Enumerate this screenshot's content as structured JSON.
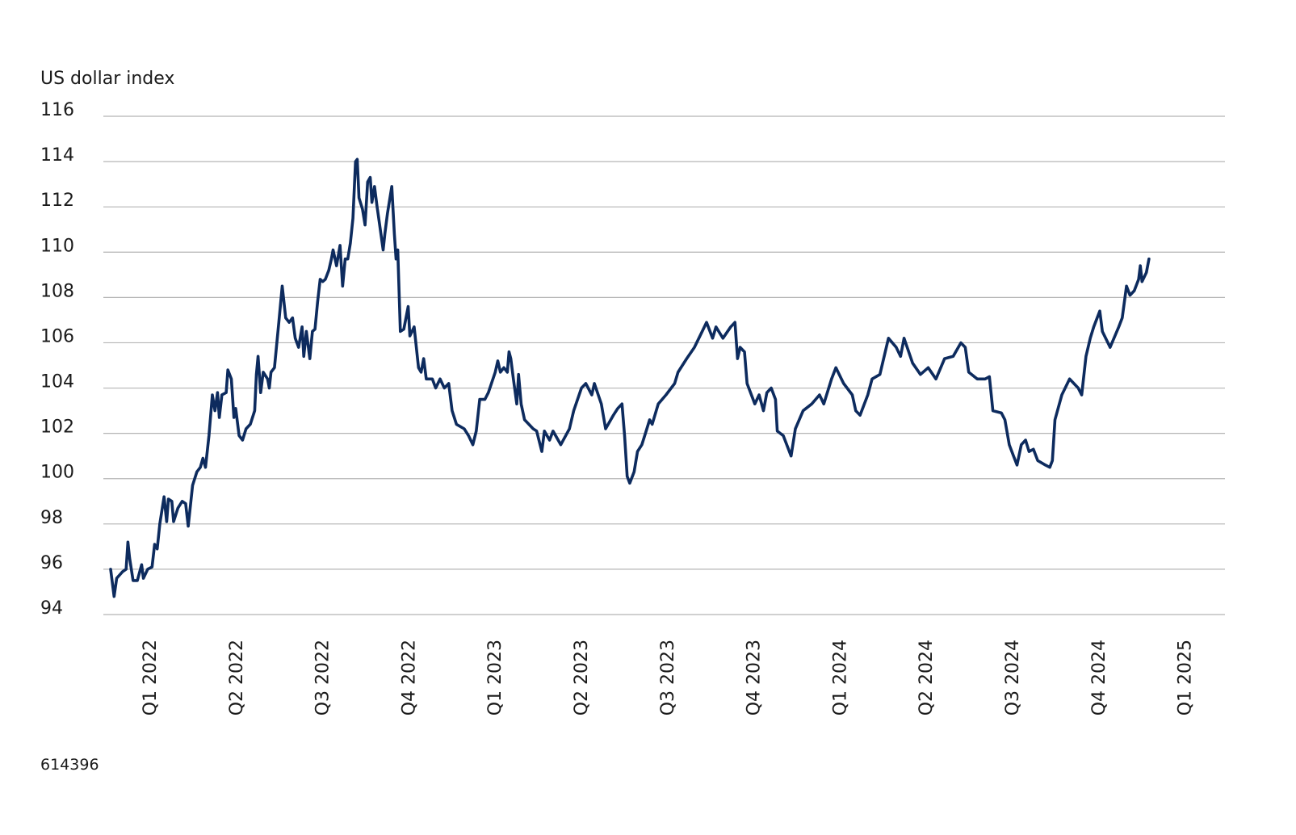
{
  "chart_data": {
    "type": "line",
    "title": "",
    "ylabel": "US dollar index",
    "xlabel": "",
    "ylim": [
      94,
      116
    ],
    "yticks": [
      "94",
      "96",
      "98",
      "100",
      "102",
      "104",
      "106",
      "108",
      "110",
      "112",
      "114",
      "116"
    ],
    "xticks": [
      "Q1 2022",
      "Q2 2022",
      "Q3 2022",
      "Q4 2022",
      "Q1 2023",
      "Q2 2023",
      "Q3 2023",
      "Q4 2023",
      "Q1 2024",
      "Q2 2024",
      "Q3 2024",
      "Q4 2024",
      "Q1 2025"
    ],
    "x_unit": "quarters since start of 2022",
    "grid": true,
    "line_color": "#0d2b5e",
    "series": [
      {
        "name": "US dollar index",
        "x": [
          0,
          0.04,
          0.07,
          0.14,
          0.18,
          0.2,
          0.22,
          0.26,
          0.31,
          0.36,
          0.38,
          0.43,
          0.48,
          0.51,
          0.54,
          0.57,
          0.62,
          0.65,
          0.67,
          0.71,
          0.73,
          0.78,
          0.83,
          0.87,
          0.9,
          0.95,
          1.0,
          1.04,
          1.07,
          1.1,
          1.14,
          1.18,
          1.21,
          1.24,
          1.26,
          1.29,
          1.34,
          1.36,
          1.4,
          1.43,
          1.45,
          1.49,
          1.53,
          1.57,
          1.62,
          1.67,
          1.69,
          1.71,
          1.74,
          1.77,
          1.82,
          1.84,
          1.86,
          1.9,
          1.95,
          1.99,
          2.03,
          2.07,
          2.11,
          2.14,
          2.18,
          2.22,
          2.24,
          2.27,
          2.31,
          2.34,
          2.37,
          2.4,
          2.43,
          2.46,
          2.49,
          2.53,
          2.56,
          2.58,
          2.62,
          2.66,
          2.69,
          2.72,
          2.75,
          2.78,
          2.81,
          2.84,
          2.86,
          2.88,
          2.92,
          2.95,
          2.98,
          3.01,
          3.03,
          3.06,
          3.09,
          3.12,
          3.16,
          3.18,
          3.21,
          3.26,
          3.29,
          3.31,
          3.33,
          3.36,
          3.4,
          3.45,
          3.47,
          3.52,
          3.57,
          3.6,
          3.63,
          3.66,
          3.73,
          3.77,
          3.82,
          3.87,
          3.92,
          3.96,
          4.01,
          4.1,
          4.15,
          4.2,
          4.24,
          4.28,
          4.34,
          4.38,
          4.46,
          4.49,
          4.52,
          4.56,
          4.6,
          4.62,
          4.64,
          4.67,
          4.71,
          4.73,
          4.76,
          4.8,
          4.9,
          4.94,
          5.0,
          5.03,
          5.09,
          5.13,
          5.22,
          5.32,
          5.37,
          5.46,
          5.51,
          5.58,
          5.61,
          5.69,
          5.74,
          5.83,
          5.88,
          5.93,
          5.96,
          5.99,
          6.02,
          6.07,
          6.11,
          6.16,
          6.21,
          6.25,
          6.28,
          6.35,
          6.44,
          6.54,
          6.58,
          6.68,
          6.77,
          6.86,
          6.91,
          6.98,
          7.02,
          7.1,
          7.19,
          7.24,
          7.27,
          7.3,
          7.35,
          7.38,
          7.47,
          7.52,
          7.57,
          7.61,
          7.66,
          7.71,
          7.73,
          7.8,
          7.89,
          7.94,
          8.03,
          8.13,
          8.22,
          8.27,
          8.36,
          8.41,
          8.5,
          8.6,
          8.64,
          8.69,
          8.78,
          8.83,
          8.92,
          9.02,
          9.11,
          9.16,
          9.2,
          9.3,
          9.39,
          9.48,
          9.57,
          9.67,
          9.77,
          9.86,
          9.91,
          9.95,
          10.05,
          10.14,
          10.19,
          10.23,
          10.33,
          10.37,
          10.42,
          10.47,
          10.51,
          10.56,
          10.61,
          10.65,
          10.7,
          10.75,
          10.84,
          10.89,
          10.92,
          10.95,
          11.03,
          11.12,
          11.22,
          11.26,
          11.31,
          11.36,
          11.4,
          11.47,
          11.5,
          11.59,
          11.69,
          11.73,
          11.78,
          11.82,
          11.87,
          11.92,
          11.94,
          11.96,
          12.01,
          12.04
        ],
        "values": [
          96.0,
          94.8,
          95.6,
          95.9,
          96.0,
          97.2,
          96.5,
          95.5,
          95.5,
          96.2,
          95.6,
          96.0,
          96.1,
          97.1,
          96.9,
          98.0,
          99.2,
          98.1,
          99.1,
          99.0,
          98.1,
          98.7,
          99.0,
          98.9,
          97.9,
          99.7,
          100.3,
          100.5,
          100.9,
          100.5,
          101.9,
          103.7,
          103.0,
          103.8,
          102.7,
          103.7,
          103.8,
          104.8,
          104.4,
          102.7,
          103.1,
          101.9,
          101.7,
          102.2,
          102.4,
          103.0,
          104.6,
          105.4,
          103.8,
          104.7,
          104.4,
          104.0,
          104.7,
          104.9,
          106.9,
          108.5,
          107.1,
          106.9,
          107.1,
          106.2,
          105.8,
          106.7,
          105.4,
          106.5,
          105.3,
          106.5,
          106.6,
          107.8,
          108.8,
          108.7,
          108.8,
          109.2,
          109.7,
          110.1,
          109.4,
          110.3,
          108.5,
          109.7,
          109.7,
          110.4,
          111.5,
          114.0,
          114.1,
          112.4,
          111.9,
          111.2,
          113.1,
          113.3,
          112.2,
          112.9,
          112.0,
          111.2,
          110.1,
          110.8,
          111.7,
          112.9,
          110.8,
          109.7,
          110.1,
          106.5,
          106.6,
          107.6,
          106.3,
          106.7,
          104.9,
          104.7,
          105.3,
          104.4,
          104.4,
          104.0,
          104.4,
          104.0,
          104.2,
          103.0,
          102.4,
          102.2,
          101.9,
          101.5,
          102.1,
          103.5,
          103.5,
          103.8,
          104.7,
          105.2,
          104.7,
          104.9,
          104.7,
          105.6,
          105.3,
          104.4,
          103.3,
          104.6,
          103.3,
          102.6,
          102.2,
          102.1,
          101.2,
          102.1,
          101.7,
          102.1,
          101.5,
          102.2,
          103.0,
          104.0,
          104.2,
          103.7,
          104.2,
          103.3,
          102.2,
          102.8,
          103.1,
          103.3,
          101.9,
          100.1,
          99.8,
          100.3,
          101.2,
          101.5,
          102.1,
          102.6,
          102.4,
          103.3,
          103.7,
          104.2,
          104.7,
          105.3,
          105.8,
          106.5,
          106.9,
          106.2,
          106.7,
          106.2,
          106.7,
          106.9,
          105.3,
          105.8,
          105.6,
          104.2,
          103.3,
          103.7,
          103.0,
          103.8,
          104.0,
          103.5,
          102.1,
          101.9,
          101.0,
          102.2,
          103.0,
          103.3,
          103.7,
          103.3,
          104.4,
          104.9,
          104.2,
          103.7,
          103.0,
          102.8,
          103.7,
          104.4,
          104.6,
          106.2,
          105.8,
          105.4,
          106.2,
          105.1,
          104.6,
          104.9,
          104.4,
          105.3,
          105.4,
          106.0,
          105.8,
          104.7,
          104.4,
          104.4,
          104.5,
          103.0,
          102.9,
          102.6,
          101.5,
          101.0,
          100.6,
          101.5,
          101.7,
          101.2,
          101.3,
          100.8,
          100.6,
          100.5,
          100.8,
          102.6,
          103.7,
          104.4,
          104.0,
          103.7,
          105.4,
          106.2,
          106.7,
          107.4,
          106.5,
          105.8,
          106.7,
          107.1,
          108.5,
          108.1,
          108.3,
          108.8,
          109.4,
          108.7,
          109.1,
          109.7
        ]
      }
    ]
  },
  "footer": {
    "id": "614396"
  }
}
